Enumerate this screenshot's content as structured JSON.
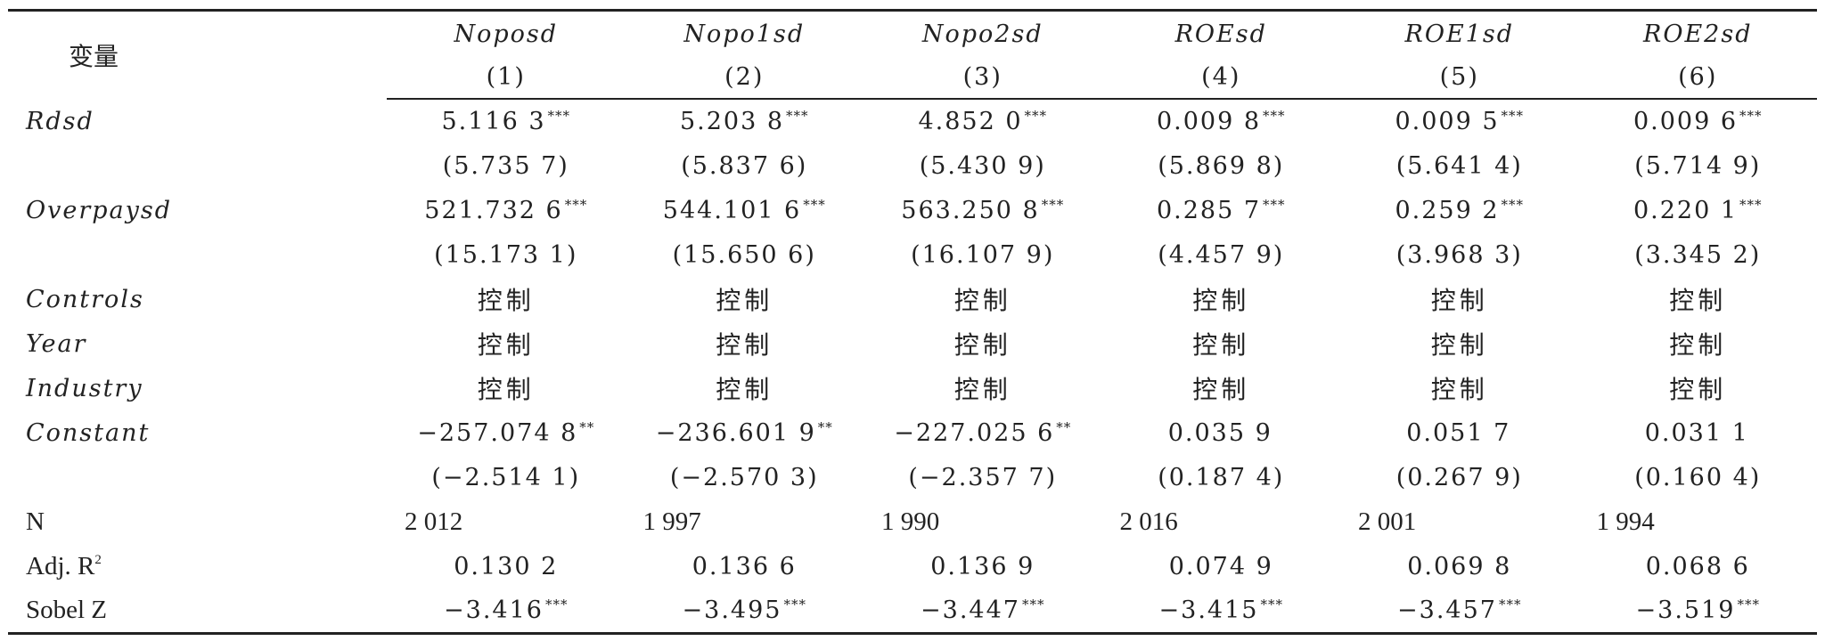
{
  "header": {
    "variable_label": "变量",
    "columns": [
      {
        "name": "Noposd",
        "num": "(1)"
      },
      {
        "name": "Nopo1sd",
        "num": "(2)"
      },
      {
        "name": "Nopo2sd",
        "num": "(3)"
      },
      {
        "name": "ROEsd",
        "num": "(4)"
      },
      {
        "name": "ROE1sd",
        "num": "(5)"
      },
      {
        "name": "ROE2sd",
        "num": "(6)"
      }
    ]
  },
  "rows": {
    "rdsd": {
      "label": "Rdsd",
      "coef": [
        "5.116 3",
        "5.203 8",
        "4.852 0",
        "0.009 8",
        "0.009 5",
        "0.009 6"
      ],
      "stars": [
        "***",
        "***",
        "***",
        "***",
        "***",
        "***"
      ],
      "t": [
        "(5.735 7)",
        "(5.837 6)",
        "(5.430 9)",
        "(5.869 8)",
        "(5.641 4)",
        "(5.714 9)"
      ]
    },
    "overpaysd": {
      "label": "Overpaysd",
      "coef": [
        "521.732 6",
        "544.101 6",
        "563.250 8",
        "0.285 7",
        "0.259 2",
        "0.220 1"
      ],
      "stars": [
        "***",
        "***",
        "***",
        "***",
        "***",
        "***"
      ],
      "t": [
        "(15.173 1)",
        "(15.650 6)",
        "(16.107 9)",
        "(4.457 9)",
        "(3.968 3)",
        "(3.345 2)"
      ]
    },
    "controls": {
      "label": "Controls",
      "values": [
        "控制",
        "控制",
        "控制",
        "控制",
        "控制",
        "控制"
      ]
    },
    "year": {
      "label": "Year",
      "values": [
        "控制",
        "控制",
        "控制",
        "控制",
        "控制",
        "控制"
      ]
    },
    "industry": {
      "label": "Industry",
      "values": [
        "控制",
        "控制",
        "控制",
        "控制",
        "控制",
        "控制"
      ]
    },
    "constant": {
      "label": "Constant",
      "coef": [
        "−257.074 8",
        "−236.601 9",
        "−227.025 6",
        "0.035 9",
        "0.051 7",
        "0.031 1"
      ],
      "stars": [
        "**",
        "**",
        "**",
        "",
        "",
        ""
      ],
      "t": [
        "(−2.514 1)",
        "(−2.570 3)",
        "(−2.357 7)",
        "(0.187 4)",
        "(0.267 9)",
        "(0.160 4)"
      ]
    },
    "n": {
      "label": "N",
      "values": [
        "2 012",
        "1 997",
        "1 990",
        "2 016",
        "2 001",
        "1 994"
      ]
    },
    "adjr2": {
      "label": "Adj. R",
      "sup": "2",
      "values": [
        "0.130 2",
        "0.136 6",
        "0.136 9",
        "0.074 9",
        "0.069 8",
        "0.068 6"
      ]
    },
    "sobel": {
      "label": "Sobel Z",
      "values": [
        "−3.416",
        "−3.495",
        "−3.447",
        "−3.415",
        "−3.457",
        "−3.519"
      ],
      "stars": [
        "***",
        "***",
        "***",
        "***",
        "***",
        "***"
      ]
    }
  }
}
